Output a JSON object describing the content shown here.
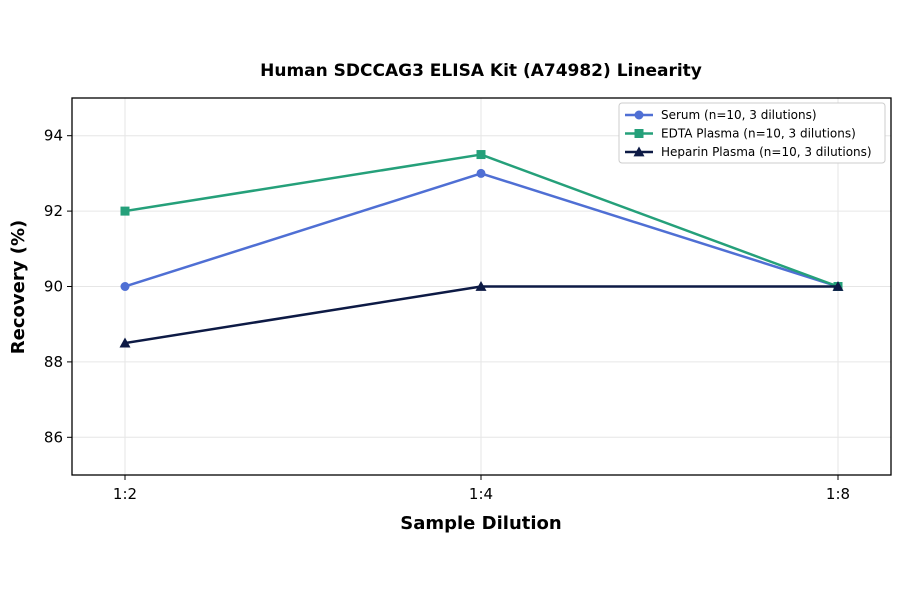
{
  "chart_data": {
    "type": "line",
    "title": "Human SDCCAG3 ELISA Kit (A74982) Linearity",
    "xlabel": "Sample Dilution",
    "ylabel": "Recovery (%)",
    "categories": [
      "1:2",
      "1:4",
      "1:8"
    ],
    "ylim": [
      85,
      95
    ],
    "yticks": [
      86,
      88,
      90,
      92,
      94
    ],
    "grid": true,
    "legend_position": "top-right",
    "series": [
      {
        "name": "Serum (n=10, 3 dilutions)",
        "values": [
          90,
          93,
          90
        ],
        "color": "#4f6fd4",
        "marker": "circle"
      },
      {
        "name": "EDTA Plasma (n=10, 3 dilutions)",
        "values": [
          92,
          93.5,
          90
        ],
        "color": "#25a07a",
        "marker": "square"
      },
      {
        "name": "Heparin Plasma (n=10, 3 dilutions)",
        "values": [
          88.5,
          90,
          90
        ],
        "color": "#0d1a45",
        "marker": "triangle"
      }
    ]
  }
}
